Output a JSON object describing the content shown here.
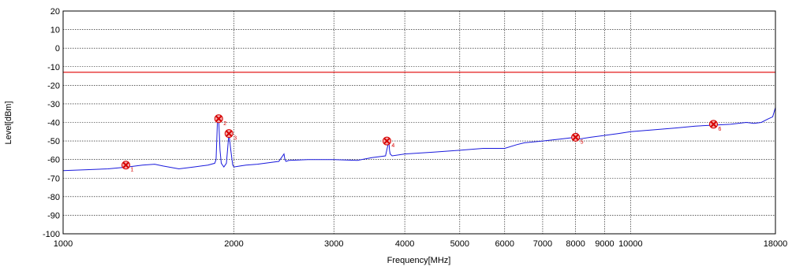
{
  "chart_data": {
    "type": "line",
    "xlabel": "Frequency[MHz]",
    "ylabel": "Level[dBm]",
    "xscale": "log",
    "xlim": [
      1000,
      18000
    ],
    "ylim": [
      -100,
      20
    ],
    "x_ticks": [
      1000,
      2000,
      3000,
      4000,
      5000,
      6000,
      7000,
      8000,
      9000,
      10000,
      18000
    ],
    "x_tick_labels": [
      "1000",
      "2000",
      "3000",
      "4000",
      "5000",
      "6000",
      "7000",
      "8000",
      "9000",
      "10000",
      "18000"
    ],
    "y_ticks": [
      20,
      10,
      0,
      -10,
      -20,
      -30,
      -40,
      -50,
      -60,
      -70,
      -80,
      -90,
      -100
    ],
    "y_tick_labels": [
      "20",
      "10",
      "0",
      "-10",
      "-20",
      "-30",
      "-40",
      "-50",
      "-60",
      "-70",
      "-80",
      "-90",
      "-100"
    ],
    "grid": true,
    "limit_line": {
      "y": -13,
      "color": "#e00000"
    },
    "series": [
      {
        "color": "#1a1adc",
        "x": [
          1000,
          1100,
          1200,
          1300,
          1380,
          1450,
          1500,
          1600,
          1700,
          1800,
          1850,
          1860,
          1870,
          1880,
          1890,
          1900,
          1920,
          1940,
          1960,
          1975,
          1990,
          2000,
          2050,
          2100,
          2200,
          2400,
          2450,
          2460,
          2470,
          2500,
          2700,
          3000,
          3300,
          3500,
          3700,
          3750,
          3760,
          3770,
          3800,
          4000,
          4500,
          5000,
          5500,
          6000,
          6300,
          6500,
          7000,
          7500,
          8000,
          8050,
          8100,
          8500,
          9000,
          9500,
          10000,
          11000,
          12000,
          13000,
          14000,
          15000,
          16000,
          16500,
          17000,
          17500,
          17800,
          18000
        ],
        "y": [
          -66,
          -65.5,
          -65,
          -64,
          -63,
          -62.5,
          -63.5,
          -65,
          -64,
          -63,
          -62,
          -60,
          -40,
          -38,
          -55,
          -62,
          -64,
          -62,
          -46,
          -55,
          -63,
          -64,
          -63.5,
          -63,
          -62.5,
          -61,
          -57,
          -60,
          -61,
          -60.5,
          -60,
          -60,
          -60.5,
          -59,
          -58,
          -50,
          -55,
          -57,
          -58,
          -57,
          -56,
          -55,
          -54,
          -54,
          -52,
          -51,
          -50,
          -49,
          -48,
          -46,
          -49,
          -48,
          -47,
          -46,
          -45,
          -44,
          -43,
          -42,
          -41.5,
          -41,
          -40,
          -40.5,
          -40,
          -38,
          -37,
          -32
        ]
      }
    ],
    "markers": [
      {
        "x": 1290,
        "y": -63,
        "label": "1"
      },
      {
        "x": 1880,
        "y": -38,
        "label": "2"
      },
      {
        "x": 1960,
        "y": -46,
        "label": "3"
      },
      {
        "x": 3720,
        "y": -50,
        "label": "4"
      },
      {
        "x": 8000,
        "y": -48,
        "label": "5"
      },
      {
        "x": 14000,
        "y": -41,
        "label": "6"
      }
    ]
  }
}
